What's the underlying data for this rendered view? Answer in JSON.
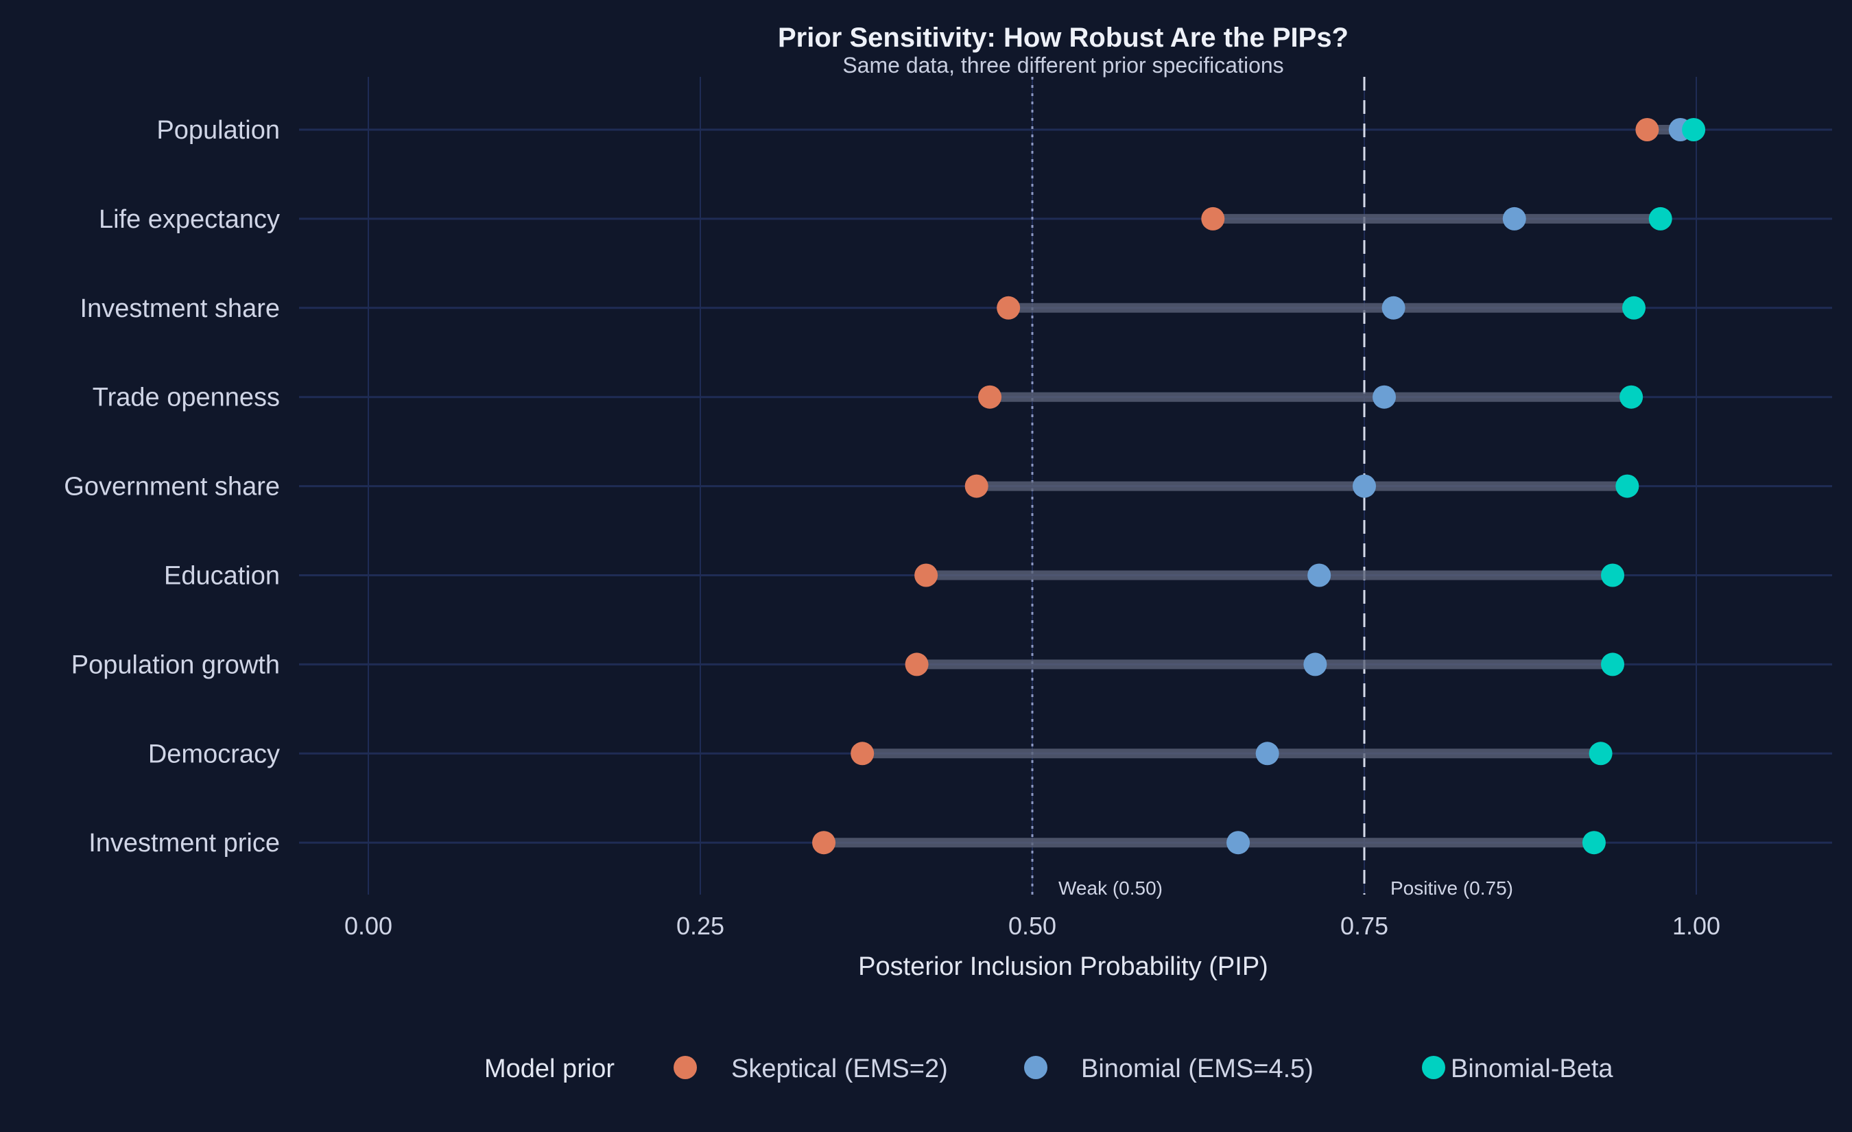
{
  "chart_data": {
    "type": "dumbbell",
    "title": "Prior Sensitivity: How Robust Are the PIPs?",
    "subtitle": "Same data, three different prior specifications",
    "xlabel": "Posterior Inclusion Probability (PIP)",
    "ylabel": "",
    "xlim": [
      -0.1,
      1.1
    ],
    "xticks": [
      0,
      0.25,
      0.5,
      0.75,
      1.0
    ],
    "xtick_labels": [
      "0.00",
      "0.25",
      "0.50",
      "0.75",
      "1.00"
    ],
    "grid": true,
    "categories": [
      "Population",
      "Life expectancy",
      "Investment share",
      "Trade openness",
      "Government share",
      "Education",
      "Population growth",
      "Democracy",
      "Investment price"
    ],
    "series": [
      {
        "name": "Skeptical (EMS=2)",
        "color": "#e07b5a",
        "values": [
          0.963,
          0.636,
          0.482,
          0.468,
          0.458,
          0.42,
          0.413,
          0.372,
          0.343
        ]
      },
      {
        "name": "Binomial (EMS=4.5)",
        "color": "#6b9fd4",
        "values": [
          0.988,
          0.863,
          0.772,
          0.765,
          0.75,
          0.716,
          0.713,
          0.677,
          0.655
        ]
      },
      {
        "name": "Binomial-Beta",
        "color": "#00d1c1",
        "values": [
          0.998,
          0.973,
          0.953,
          0.951,
          0.948,
          0.937,
          0.937,
          0.928,
          0.923
        ]
      }
    ],
    "reference_lines": [
      {
        "value": 0.5,
        "label": "Weak (0.50)",
        "style": "dotted",
        "color": "#8e9ac4"
      },
      {
        "value": 0.75,
        "label": "Positive (0.75)",
        "style": "dashed",
        "color": "#d6dbea"
      }
    ],
    "legend": {
      "title": "Model prior",
      "placement": "bottom"
    },
    "colors": {
      "background": "#10172a",
      "grid": "#1f2c55",
      "segment": "#5a6178",
      "text": "#d0d5e6",
      "title": "#eef1f8"
    }
  }
}
